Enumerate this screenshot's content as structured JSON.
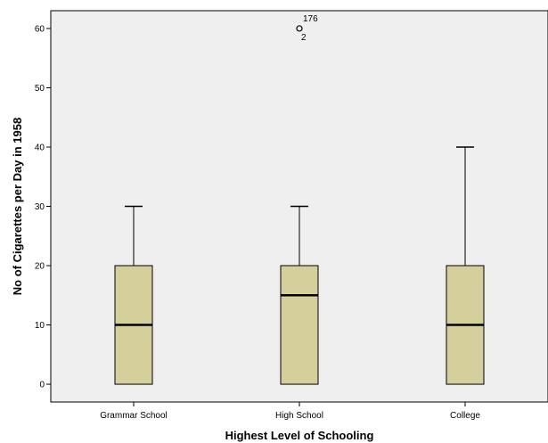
{
  "chart_data": {
    "type": "boxplot",
    "title": "",
    "xlabel": "Highest Level of Schooling",
    "ylabel": "No of Cigarettes per Day in 1958",
    "ylim": [
      -3,
      63
    ],
    "yticks": [
      0,
      10,
      20,
      30,
      40,
      50,
      60
    ],
    "grid": false,
    "colors": {
      "box_fill": "#d5cf9b",
      "plot_bg": "#efefef",
      "stroke": "#000000"
    },
    "categories": [
      "Grammar School",
      "High School",
      "College"
    ],
    "boxes": [
      {
        "category": "Grammar School",
        "whisker_low": 0,
        "q1": 0,
        "median": 10,
        "q3": 20,
        "whisker_high": 30,
        "outliers": []
      },
      {
        "category": "High School",
        "whisker_low": 0,
        "q1": 0,
        "median": 15,
        "q3": 20,
        "whisker_high": 30,
        "outliers": [
          {
            "value": 60,
            "labels": [
              "176",
              "2"
            ]
          }
        ]
      },
      {
        "category": "College",
        "whisker_low": 0,
        "q1": 0,
        "median": 10,
        "q3": 20,
        "whisker_high": 40,
        "outliers": []
      }
    ]
  }
}
